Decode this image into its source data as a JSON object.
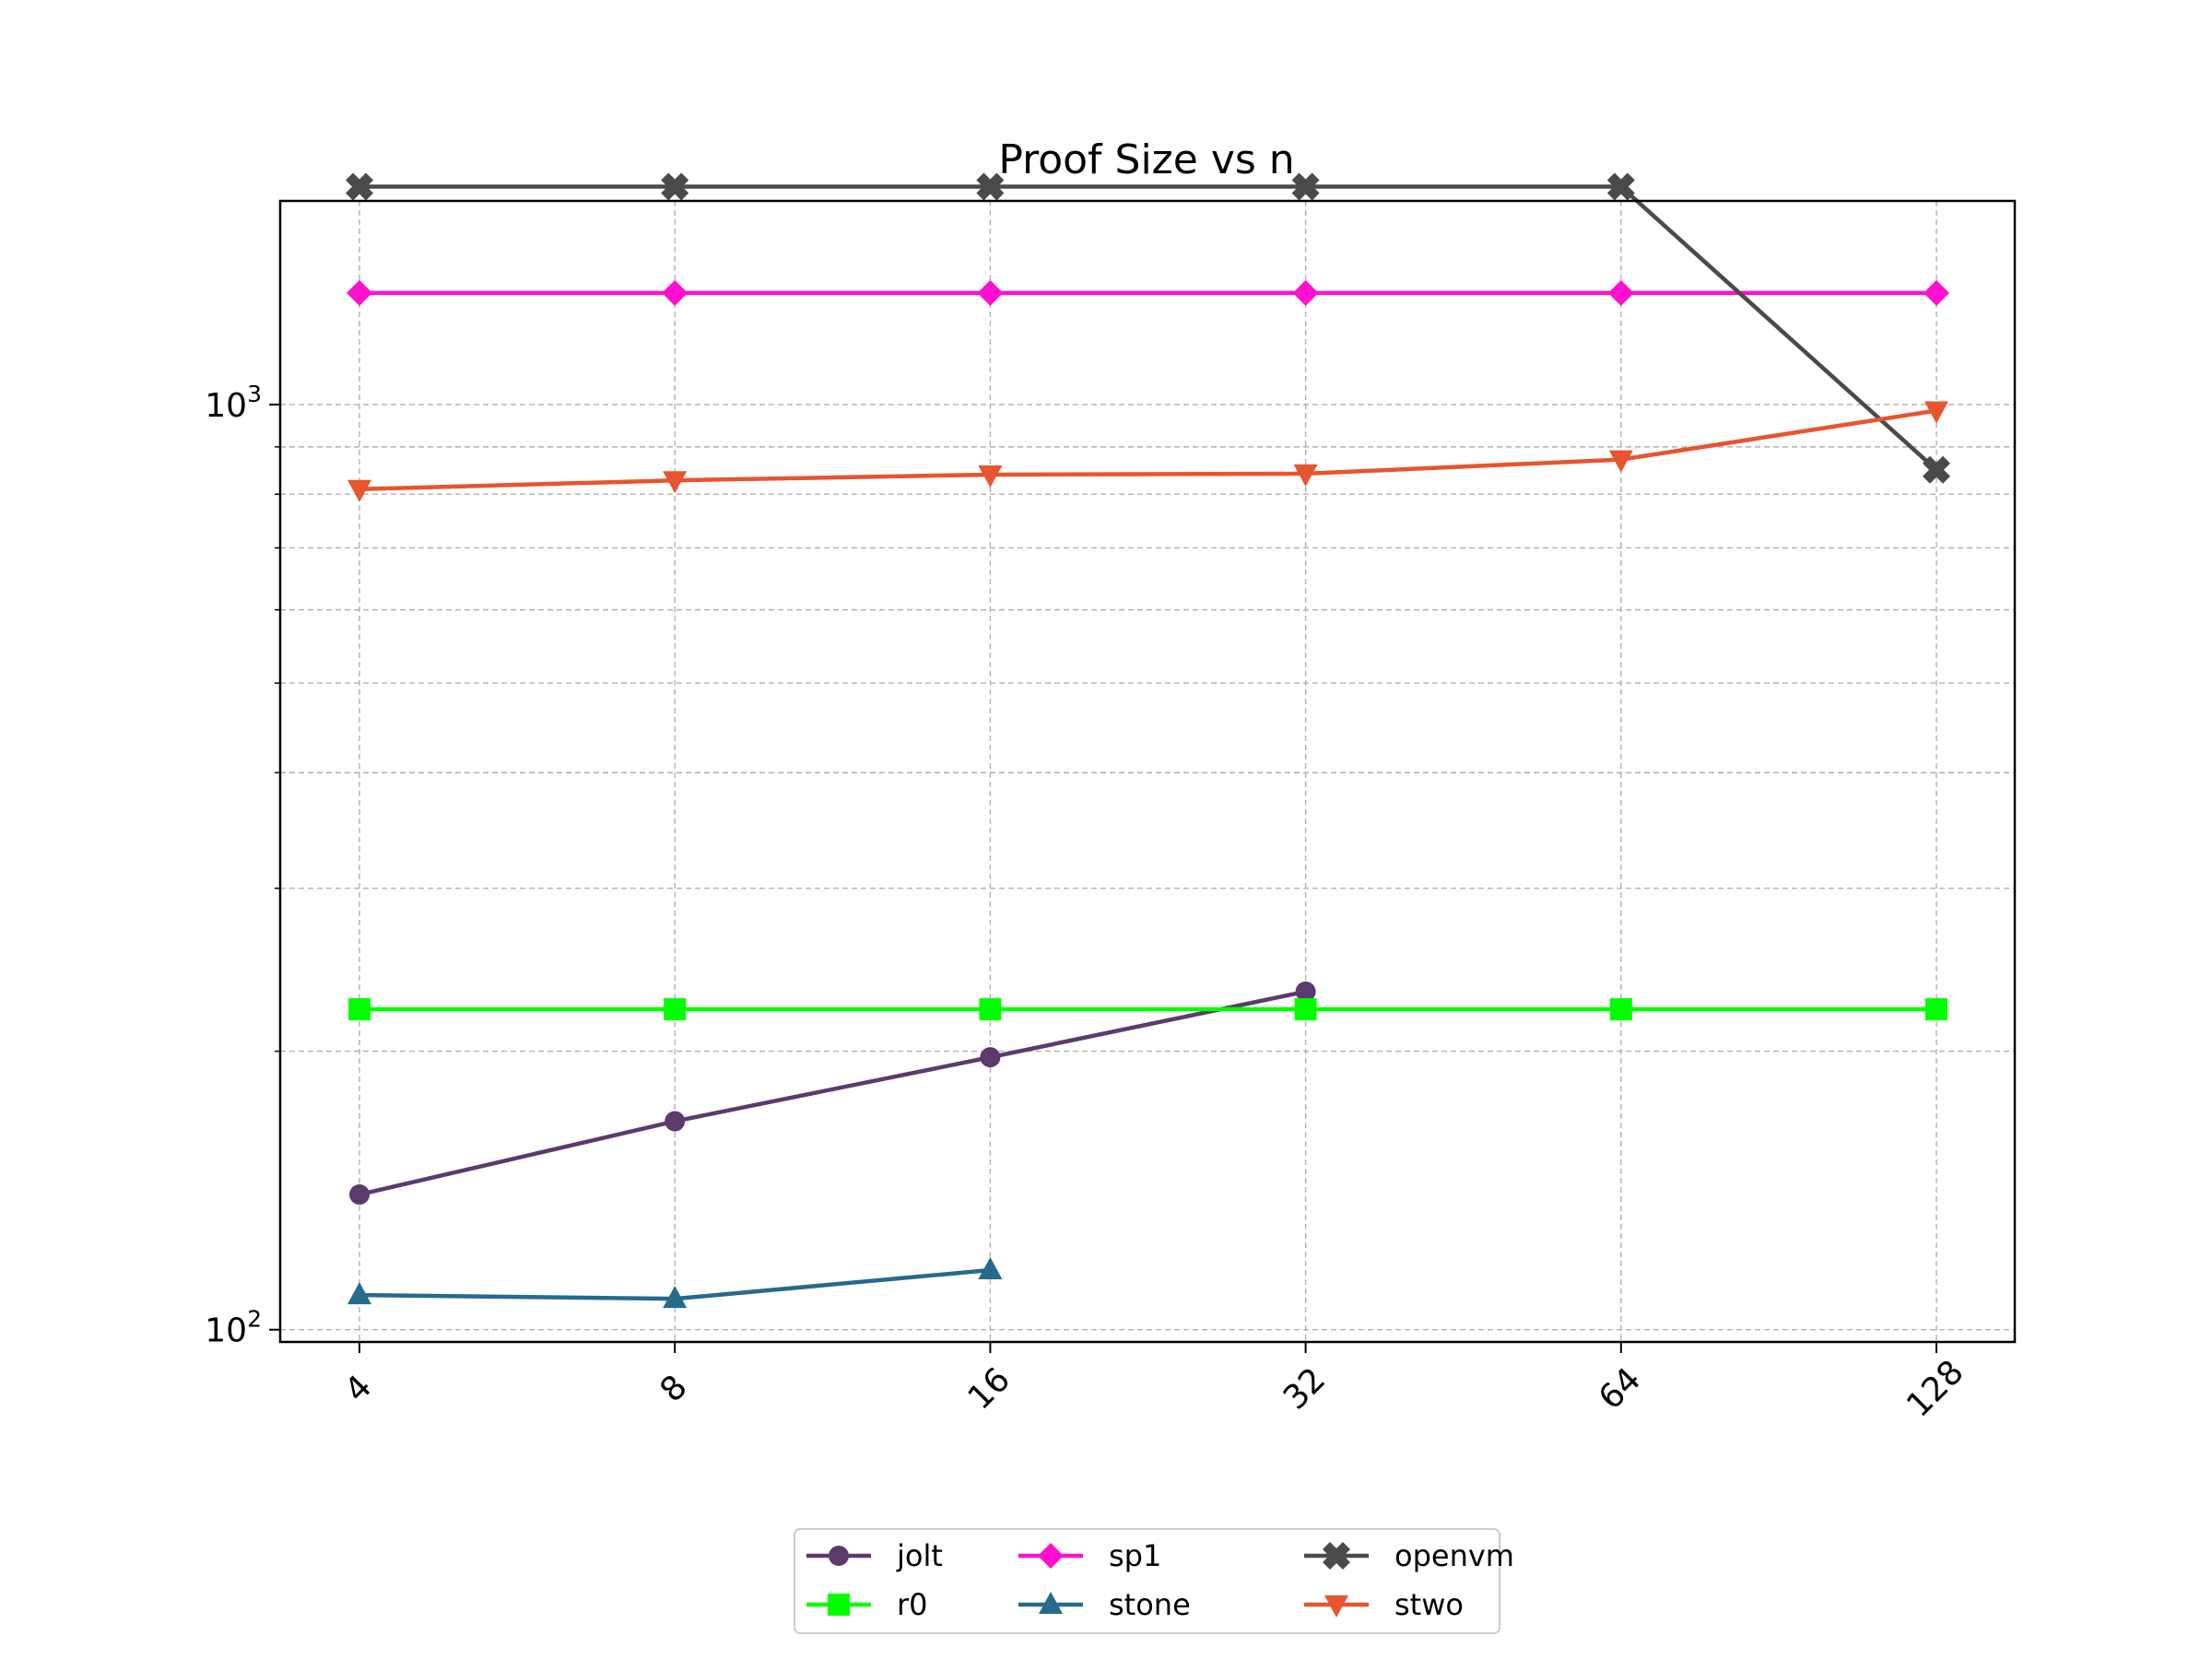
{
  "chart_data": {
    "type": "line",
    "title": "Proof Size vs n",
    "xlabel": "",
    "ylabel": "",
    "x_scale": "log2",
    "y_scale": "log10",
    "x": [
      4,
      8,
      16,
      32,
      64,
      128
    ],
    "x_tick_labels": [
      "4",
      "8",
      "16",
      "32",
      "64",
      "128"
    ],
    "y_major_ticks": [
      {
        "value": 100,
        "base": "10",
        "exp": "2"
      },
      {
        "value": 1000,
        "base": "10",
        "exp": "3"
      }
    ],
    "y_minor_ticks": [
      200,
      300,
      400,
      500,
      600,
      700,
      800,
      900
    ],
    "ylim": [
      97,
      1660
    ],
    "grid": true,
    "legend_position": "bottom-center, below axes",
    "series": [
      {
        "name": "jolt",
        "color": "#5c3a6e",
        "marker": "circle",
        "values": [
          140,
          168,
          197,
          232,
          null,
          null
        ]
      },
      {
        "name": "sp1",
        "color": "#ff10d0",
        "marker": "diamond",
        "values": [
          1320,
          1320,
          1320,
          1320,
          1320,
          1320
        ]
      },
      {
        "name": "openvm",
        "color": "#4a4a4a",
        "marker": "x",
        "values": [
          1720,
          1720,
          1720,
          1720,
          1720,
          850
        ]
      },
      {
        "name": "r0",
        "color": "#00ff00",
        "marker": "square",
        "values": [
          222,
          222,
          222,
          222,
          222,
          222
        ]
      },
      {
        "name": "stone",
        "color": "#266a8c",
        "marker": "triangle-up",
        "values": [
          109,
          108,
          116,
          null,
          null,
          null
        ]
      },
      {
        "name": "stwo",
        "color": "#e8542e",
        "marker": "triangle-down",
        "values": [
          810,
          828,
          840,
          842,
          872,
          985
        ]
      }
    ]
  }
}
